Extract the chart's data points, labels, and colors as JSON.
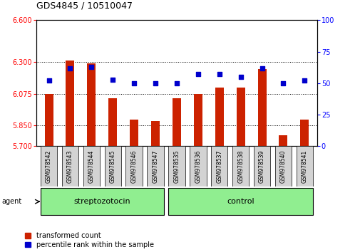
{
  "title": "GDS4845 / 10510047",
  "samples": [
    "GSM978542",
    "GSM978543",
    "GSM978544",
    "GSM978545",
    "GSM978546",
    "GSM978547",
    "GSM978535",
    "GSM978536",
    "GSM978537",
    "GSM978538",
    "GSM978539",
    "GSM978540",
    "GSM978541"
  ],
  "red_values": [
    6.075,
    6.31,
    6.29,
    6.04,
    5.89,
    5.88,
    6.04,
    6.075,
    6.12,
    6.12,
    6.25,
    5.78,
    5.89
  ],
  "blue_values": [
    52,
    62,
    63,
    53,
    50,
    50,
    50,
    57,
    57,
    55,
    62,
    50,
    52
  ],
  "ylim_left": [
    5.7,
    6.6
  ],
  "ylim_right": [
    0,
    100
  ],
  "yticks_left": [
    5.7,
    5.85,
    6.075,
    6.3,
    6.6
  ],
  "yticks_right": [
    0,
    25,
    50,
    75,
    100
  ],
  "group_separator": 6,
  "legend_red": "transformed count",
  "legend_blue": "percentile rank within the sample",
  "bar_color": "#CC2200",
  "dot_color": "#0000CC",
  "tick_label_bg": "#D3D3D3",
  "green_color": "#90EE90",
  "bar_width": 0.4
}
